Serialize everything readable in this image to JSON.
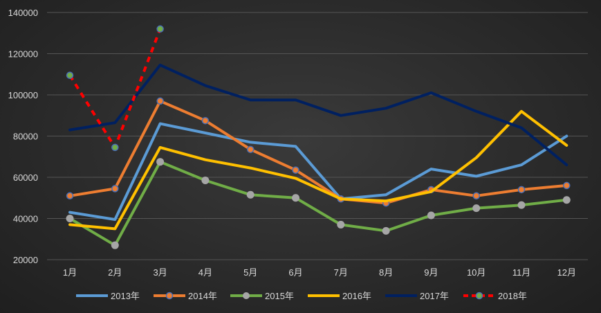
{
  "chart_data": {
    "type": "line",
    "title": "",
    "xlabel": "",
    "ylabel": "",
    "categories": [
      "1月",
      "2月",
      "3月",
      "4月",
      "5月",
      "6月",
      "7月",
      "8月",
      "9月",
      "10月",
      "11月",
      "12月"
    ],
    "ylim": [
      20000,
      140000
    ],
    "yticks": [
      20000,
      40000,
      60000,
      80000,
      100000,
      120000,
      140000
    ],
    "grid": true,
    "legend_position": "bottom",
    "series": [
      {
        "name": "2013年",
        "color": "#5b9bd5",
        "marker": "none",
        "dashed": false,
        "values": [
          43000,
          39500,
          86000,
          81500,
          77000,
          75000,
          49500,
          51500,
          64000,
          60500,
          66000,
          80000
        ]
      },
      {
        "name": "2014年",
        "color": "#ed7d31",
        "marker": "circle-hollow",
        "dashed": false,
        "values": [
          51000,
          54500,
          97000,
          87500,
          73500,
          63500,
          49500,
          47500,
          54000,
          51000,
          54000,
          56000
        ]
      },
      {
        "name": "2015年",
        "color": "#70ad47",
        "marker": "circle-gray",
        "dashed": false,
        "values": [
          40000,
          27000,
          67500,
          58500,
          51500,
          50000,
          37000,
          34000,
          41500,
          45000,
          46500,
          49000
        ]
      },
      {
        "name": "2016年",
        "color": "#ffc000",
        "marker": "none",
        "dashed": false,
        "values": [
          37000,
          35000,
          74500,
          68500,
          64500,
          59500,
          49500,
          48500,
          53000,
          69500,
          92000,
          75500
        ]
      },
      {
        "name": "2017年",
        "color": "#002060",
        "marker": "none",
        "dashed": false,
        "values": [
          83000,
          86500,
          114500,
          104500,
          97500,
          97500,
          90000,
          93500,
          101000,
          92000,
          84000,
          66000
        ]
      },
      {
        "name": "2018年",
        "color": "#ff0000",
        "marker": "circle-green",
        "dashed": true,
        "values": [
          109500,
          74500,
          132000,
          null,
          null,
          null,
          null,
          null,
          null,
          null,
          null,
          null
        ]
      }
    ]
  }
}
